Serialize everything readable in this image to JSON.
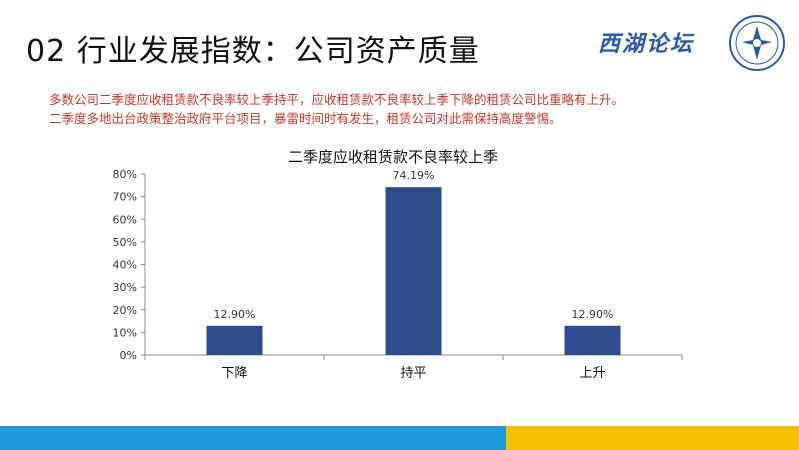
{
  "slide": {
    "title": "02 行业发展指数：公司资产质量",
    "brand": "西湖论坛",
    "description": [
      "多数公司二季度应收租赁款不良率较上季持平，应收租赁款不良率较上季下降的租赁公司比重略有上升。",
      "二季度多地出台政策整治政府平台项目，暴雷时间时有发生，租赁公司对此需保持高度警惕。"
    ]
  },
  "colors": {
    "bar": "#2e4d8e",
    "description_text": "#c0392b",
    "footer_left": "#1a9ad6",
    "footer_right": "#f5c000"
  },
  "chart_data": {
    "type": "bar",
    "title": "二季度应收租赁款不良率较上季",
    "categories": [
      "下降",
      "持平",
      "上升"
    ],
    "values": [
      12.9,
      74.19,
      12.9
    ],
    "data_labels": [
      "12.90%",
      "74.19%",
      "12.90%"
    ],
    "ylim": [
      0,
      80
    ],
    "yticks": [
      0,
      10,
      20,
      30,
      40,
      50,
      60,
      70,
      80
    ],
    "ytick_labels": [
      "0%",
      "10%",
      "20%",
      "30%",
      "40%",
      "50%",
      "60%",
      "70%",
      "80%"
    ],
    "grid": false,
    "legend": "none"
  }
}
